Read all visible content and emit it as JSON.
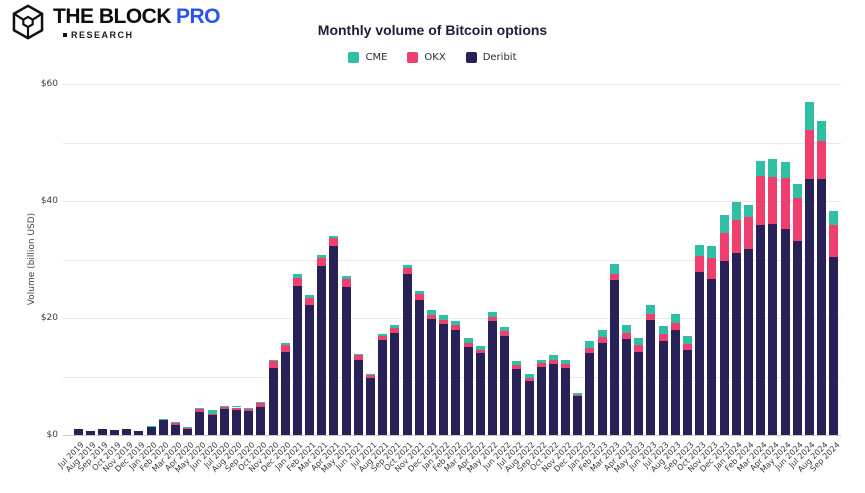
{
  "header": {
    "brand": "THE BLOCK",
    "brand_pro": "PRO",
    "pro_color": "#2b54e8",
    "sub": "RESEARCH"
  },
  "chart_data": {
    "type": "bar",
    "stacked": true,
    "title": "Monthly volume of Bitcoin options",
    "xlabel": "",
    "ylabel": "Volume (billion USD)",
    "ylim": [
      0,
      60
    ],
    "grid": true,
    "grid_step": 10,
    "ytick_label_step": 20,
    "ytick_prefix": "$",
    "legend_position": "top",
    "categories": [
      "Jul 2019",
      "Aug 2019",
      "Sep 2019",
      "Oct 2019",
      "Nov 2019",
      "Dec 2019",
      "Jan 2020",
      "Feb 2020",
      "Mar 2020",
      "Apr 2020",
      "May 2020",
      "Jun 2020",
      "Jul 2020",
      "Aug 2020",
      "Sep 2020",
      "Oct 2020",
      "Nov 2020",
      "Dec 2020",
      "Jan 2021",
      "Feb 2021",
      "Mar 2021",
      "Apr 2021",
      "May 2021",
      "Jun 2021",
      "Jul 2021",
      "Aug 2021",
      "Sep 2021",
      "Oct 2021",
      "Nov 2021",
      "Dec 2021",
      "Jan 2022",
      "Feb 2022",
      "Mar 2022",
      "Apr 2022",
      "May 2022",
      "Jun 2022",
      "Jul 2022",
      "Aug 2022",
      "Sep 2022",
      "Oct 2022",
      "Nov 2022",
      "Dec 2022",
      "Jan 2023",
      "Feb 2023",
      "Mar 2023",
      "Apr 2023",
      "May 2023",
      "Jun 2023",
      "Jul 2023",
      "Aug 2023",
      "Sep 2023",
      "Oct 2023",
      "Nov 2023",
      "Dec 2023",
      "Jan 2024",
      "Feb 2024",
      "Mar 2024",
      "Apr 2024",
      "May 2024",
      "Jun 2024",
      "Jul 2024",
      "Aug 2024",
      "Sep 2024"
    ],
    "series": [
      {
        "name": "CME",
        "color": "#2ebfa5",
        "values": [
          0,
          0,
          0,
          0,
          0,
          0,
          0.05,
          0.1,
          0.05,
          0.05,
          0.1,
          0.65,
          0.1,
          0.2,
          0.15,
          0.1,
          0.2,
          0.4,
          0.7,
          0.5,
          0.6,
          0.5,
          0.4,
          0.3,
          0.15,
          0.45,
          0.6,
          0.5,
          0.6,
          0.85,
          0.9,
          0.8,
          0.75,
          0.6,
          0.75,
          0.7,
          0.75,
          0.6,
          0.6,
          0.85,
          0.7,
          0.3,
          1.3,
          1.1,
          1.6,
          1.4,
          1.3,
          1.5,
          1.4,
          1.6,
          1.25,
          1.9,
          2.1,
          3.1,
          3.1,
          2.2,
          2.6,
          3.0,
          2.7,
          2.4,
          4.7,
          3.4,
          2.4
        ]
      },
      {
        "name": "OKX",
        "color": "#ee3f6e",
        "values": [
          0,
          0,
          0,
          0,
          0,
          0,
          0,
          0.1,
          0.5,
          0.15,
          0.5,
          0.15,
          0.4,
          0.4,
          0.4,
          0.7,
          1.1,
          1.1,
          1.3,
          1.2,
          1.3,
          1.3,
          1.4,
          0.8,
          0.4,
          0.7,
          0.75,
          1.0,
          1.1,
          0.75,
          0.7,
          0.75,
          0.8,
          0.6,
          0.7,
          0.8,
          0.75,
          0.6,
          0.7,
          0.7,
          0.7,
          0.3,
          0.85,
          1.0,
          1.1,
          1.0,
          1.1,
          1.0,
          1.1,
          1.1,
          1.1,
          2.7,
          3.5,
          4.7,
          5.6,
          5.4,
          8.3,
          8.1,
          8.7,
          7.3,
          8.4,
          6.6,
          5.5
        ]
      },
      {
        "name": "Deribit",
        "color": "#272157",
        "values": [
          1.0,
          0.6,
          0.95,
          0.9,
          0.95,
          0.6,
          1.45,
          2.6,
          1.75,
          1.1,
          4.0,
          3.5,
          4.4,
          4.3,
          4.05,
          4.8,
          11.5,
          14.2,
          25.5,
          22.3,
          28.9,
          32.3,
          25.3,
          12.8,
          9.8,
          16.2,
          17.5,
          27.6,
          23.0,
          19.8,
          18.9,
          18.0,
          15.0,
          14.0,
          19.5,
          17.0,
          11.2,
          9.2,
          11.6,
          12.2,
          11.5,
          6.6,
          14.0,
          15.8,
          26.5,
          16.4,
          14.2,
          19.7,
          16.1,
          18.0,
          14.5,
          27.9,
          26.7,
          29.8,
          31.1,
          31.8,
          35.9,
          36.0,
          35.2,
          33.2,
          43.8,
          43.7,
          30.4
        ]
      }
    ]
  }
}
